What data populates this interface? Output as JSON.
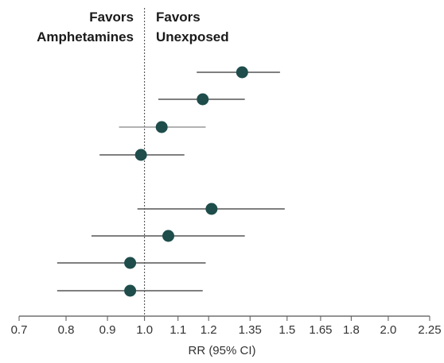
{
  "header": {
    "left_line1": "Favors",
    "left_line2": "Amphetamines",
    "right_line1": "Favors",
    "right_line2": "Unexposed"
  },
  "chart_data": {
    "type": "forest",
    "xlabel": "RR (95% CI)",
    "xscale": "log",
    "xlim": [
      0.7,
      2.25
    ],
    "ticks": [
      {
        "value": 0.7,
        "label": "0.7"
      },
      {
        "value": 0.8,
        "label": "0.8"
      },
      {
        "value": 0.9,
        "label": "0.9"
      },
      {
        "value": 1.0,
        "label": "1.0"
      },
      {
        "value": 1.1,
        "label": "1.1"
      },
      {
        "value": 1.2,
        "label": "1.2"
      },
      {
        "value": 1.35,
        "label": "1.35"
      },
      {
        "value": 1.5,
        "label": "1.5"
      },
      {
        "value": 1.65,
        "label": "1.65"
      },
      {
        "value": 1.8,
        "label": "1.8"
      },
      {
        "value": 2.0,
        "label": "2.0"
      },
      {
        "value": 2.25,
        "label": "2.25"
      }
    ],
    "reference_line": 1.0,
    "rows": [
      {
        "rr": 1.32,
        "lower": 1.16,
        "upper": 1.47,
        "ci_color": "#555555"
      },
      {
        "rr": 1.18,
        "lower": 1.04,
        "upper": 1.33,
        "ci_color": "#555555"
      },
      {
        "rr": 1.05,
        "lower": 0.93,
        "upper": 1.19,
        "ci_color": "#999999"
      },
      {
        "rr": 0.99,
        "lower": 0.88,
        "upper": 1.12,
        "ci_color": "#555555"
      },
      {
        "rr": 1.21,
        "lower": 0.98,
        "upper": 1.49,
        "ci_color": "#555555"
      },
      {
        "rr": 1.07,
        "lower": 0.86,
        "upper": 1.33,
        "ci_color": "#555555"
      },
      {
        "rr": 0.96,
        "lower": 0.78,
        "upper": 1.19,
        "ci_color": "#555555"
      },
      {
        "rr": 0.96,
        "lower": 0.78,
        "upper": 1.18,
        "ci_color": "#555555"
      }
    ],
    "colors": {
      "point": "#1e4d4b",
      "axis": "#555555",
      "reference": "#444444"
    }
  }
}
